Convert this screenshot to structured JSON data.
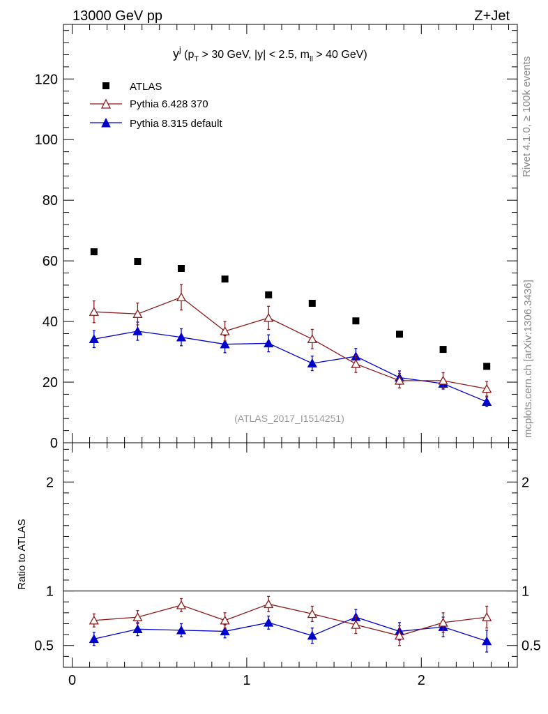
{
  "header": {
    "energy_label": "13000 GeV pp",
    "process_label": "Z+Jet"
  },
  "side_labels": {
    "rivet": "Rivet 4.1.0, ≥ 100k events",
    "mcplots": "mcplots.cern.ch [arXiv:1306.3436]"
  },
  "chart_data": {
    "type": "scatter",
    "title": {
      "var": "y",
      "var_sup": "j",
      "part1": " (p",
      "part1_sub": "T",
      "part2": " > 30 GeV, |y| < 2.5, m",
      "part2_sub": "ll",
      "part3": " > 40 GeV)"
    },
    "analysis_label": "(ATLAS_2017_I1514251)",
    "x": [
      0.125,
      0.375,
      0.625,
      0.875,
      1.125,
      1.375,
      1.625,
      1.875,
      2.125,
      2.375
    ],
    "xlim": [
      -0.05,
      2.55
    ],
    "x_ticks": [
      0,
      1,
      2
    ],
    "x_tick_labels": [
      "0",
      "1",
      "2"
    ],
    "main_panel": {
      "ylim": [
        0,
        138
      ],
      "y_ticks": [
        0,
        20,
        40,
        60,
        80,
        100,
        120
      ],
      "y_tick_labels": [
        "0",
        "20",
        "40",
        "60",
        "80",
        "100",
        "120"
      ]
    },
    "ratio_panel": {
      "ylabel": "Ratio to ATLAS",
      "ylim": [
        0.3,
        2.36
      ],
      "y_ticks": [
        0.5,
        1,
        2
      ],
      "y_tick_labels": [
        "0.5",
        "1",
        "2"
      ]
    },
    "series": [
      {
        "name": "ATLAS",
        "color": "#000000",
        "marker": "square",
        "values": [
          63.0,
          59.8,
          57.5,
          54.0,
          48.8,
          46.0,
          40.2,
          35.8,
          30.8,
          25.2
        ]
      },
      {
        "name": "Pythia 6.428 370",
        "color": "#8b1a1a",
        "marker": "open-triangle",
        "values": [
          43.2,
          42.5,
          48.0,
          36.8,
          41.2,
          34.2,
          26.0,
          20.5,
          20.5,
          17.8
        ],
        "errors": [
          3.6,
          3.6,
          4.2,
          3.2,
          3.8,
          3.2,
          2.8,
          2.4,
          2.6,
          2.4
        ],
        "ratio": [
          0.73,
          0.76,
          0.87,
          0.73,
          0.88,
          0.79,
          0.69,
          0.59,
          0.71,
          0.76
        ],
        "ratio_errors": [
          0.06,
          0.06,
          0.06,
          0.07,
          0.07,
          0.07,
          0.08,
          0.09,
          0.09,
          0.1
        ]
      },
      {
        "name": "Pythia 8.315 default",
        "color": "#0000cc",
        "marker": "filled-triangle",
        "values": [
          34.2,
          36.8,
          34.8,
          32.5,
          32.8,
          26.2,
          28.5,
          21.5,
          19.5,
          13.5
        ],
        "errors": [
          2.8,
          3.0,
          2.8,
          2.8,
          2.8,
          2.4,
          2.6,
          2.2,
          1.8,
          1.6
        ],
        "ratio": [
          0.56,
          0.65,
          0.64,
          0.63,
          0.71,
          0.59,
          0.76,
          0.63,
          0.67,
          0.54
        ],
        "ratio_errors": [
          0.06,
          0.06,
          0.06,
          0.06,
          0.06,
          0.07,
          0.07,
          0.08,
          0.09,
          0.1
        ]
      }
    ]
  }
}
